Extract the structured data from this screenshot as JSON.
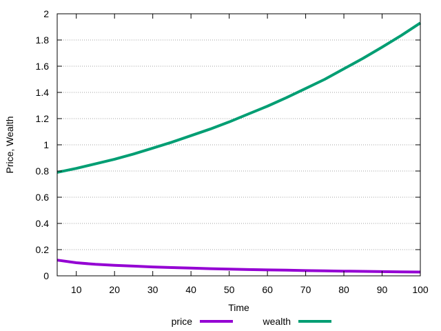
{
  "chart_data": {
    "type": "line",
    "title": "",
    "xlabel": "Time",
    "ylabel": "Price, Wealth",
    "xlim": [
      5,
      100
    ],
    "ylim": [
      0,
      2
    ],
    "x_ticks": [
      10,
      20,
      30,
      40,
      50,
      60,
      70,
      80,
      90,
      100
    ],
    "y_ticks": [
      0,
      0.2,
      0.4,
      0.6,
      0.8,
      1,
      1.2,
      1.4,
      1.6,
      1.8,
      2
    ],
    "grid": "horizontal-dotted",
    "legend_position": "bottom-center",
    "series": [
      {
        "name": "price",
        "color": "#9400d3",
        "x": [
          5,
          10,
          15,
          20,
          25,
          30,
          35,
          40,
          45,
          50,
          55,
          60,
          65,
          70,
          75,
          80,
          85,
          90,
          95,
          100
        ],
        "y": [
          0.12,
          0.1,
          0.088,
          0.08,
          0.074,
          0.068,
          0.063,
          0.059,
          0.055,
          0.051,
          0.048,
          0.045,
          0.043,
          0.04,
          0.038,
          0.036,
          0.034,
          0.032,
          0.03,
          0.029
        ]
      },
      {
        "name": "wealth",
        "color": "#009e73",
        "x": [
          5,
          10,
          15,
          20,
          25,
          30,
          35,
          40,
          45,
          50,
          55,
          60,
          65,
          70,
          75,
          80,
          85,
          90,
          95,
          100
        ],
        "y": [
          0.79,
          0.82,
          0.855,
          0.89,
          0.93,
          0.975,
          1.02,
          1.07,
          1.12,
          1.175,
          1.235,
          1.295,
          1.36,
          1.43,
          1.5,
          1.58,
          1.66,
          1.745,
          1.835,
          1.93
        ]
      }
    ]
  }
}
